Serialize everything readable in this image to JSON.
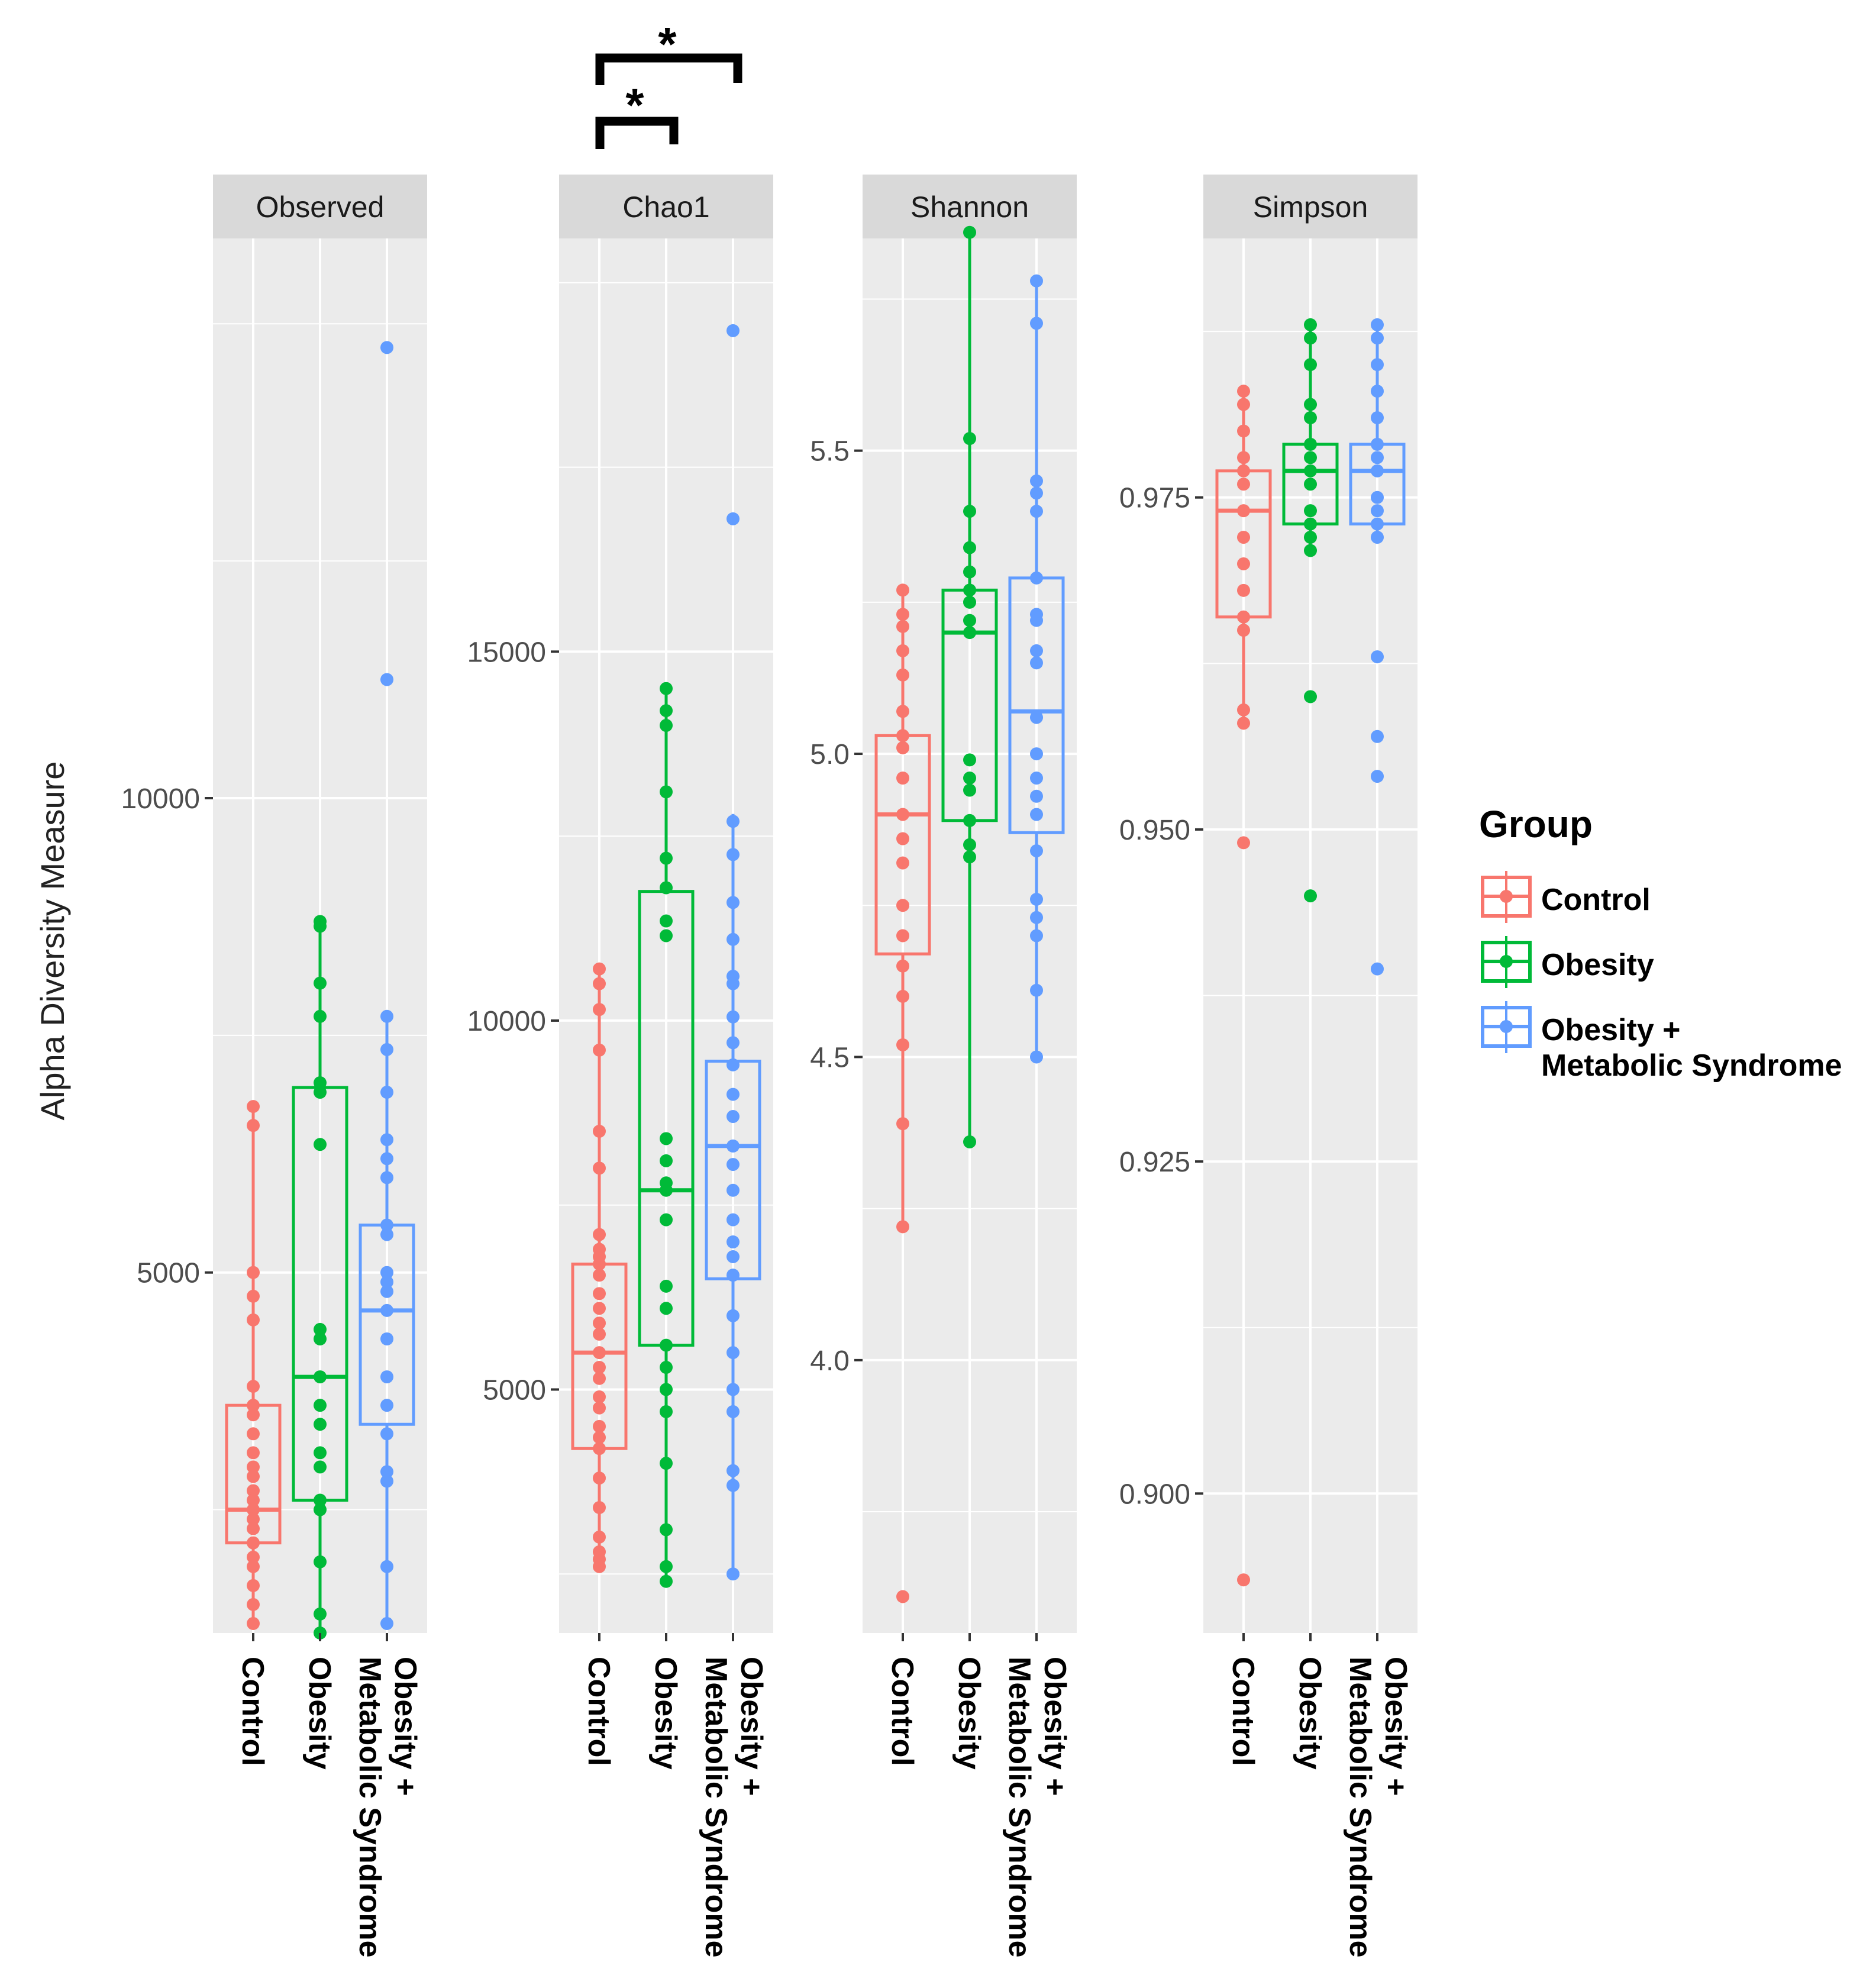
{
  "y_axis_title": "Alpha Diversity Measure",
  "legend": {
    "title": "Group",
    "entries": [
      {
        "label": "Control",
        "color": "#F8766D"
      },
      {
        "label": "Obesity",
        "color": "#00BA38"
      },
      {
        "label_line1": "Obesity +",
        "label_line2": "Metabolic Syndrome",
        "color": "#619CFF"
      }
    ]
  },
  "x_tick_labels": {
    "control": "Control",
    "obesity": "Obesity",
    "ms_line1": "Obesity +",
    "ms_line2": "Metabolic Syndrome"
  },
  "significance": [
    {
      "facet": "Chao1",
      "from": "Control",
      "to": "Obesity",
      "label": "*"
    },
    {
      "facet": "Chao1",
      "from": "Control",
      "to": "Obesity + Metabolic Syndrome",
      "label": "*"
    }
  ],
  "chart_data": [
    {
      "type": "box",
      "title": "Observed",
      "ylim": [
        1200,
        15900
      ],
      "yticks": [
        5000,
        10000
      ],
      "ytick_labels": [
        "5000",
        "10000"
      ],
      "categories": [
        "Control",
        "Obesity",
        "Obesity + Metabolic Syndrome"
      ],
      "groups": [
        {
          "name": "Control",
          "color": "#F8766D",
          "box": {
            "whisker_low": 1300,
            "q1": 2150,
            "median": 2500,
            "q3": 3600,
            "whisker_high": 6750
          },
          "points": [
            6750,
            6550,
            5000,
            4750,
            4500,
            3800,
            3600,
            3500,
            3300,
            3100,
            2950,
            2850,
            2700,
            2600,
            2500,
            2400,
            2300,
            2150,
            2000,
            1900,
            1700,
            1500,
            1300
          ]
        },
        {
          "name": "Obesity",
          "color": "#00BA38",
          "box": {
            "whisker_low": 1200,
            "q1": 2600,
            "median": 3900,
            "q3": 6950,
            "whisker_high": 8700
          },
          "points": [
            8700,
            8650,
            8050,
            7700,
            7000,
            6900,
            6350,
            4400,
            4300,
            3900,
            3600,
            3400,
            3100,
            2950,
            2600,
            2500,
            1950,
            1400,
            1200
          ]
        },
        {
          "name": "Obesity + Metabolic Syndrome",
          "color": "#619CFF",
          "box": {
            "whisker_low": 1300,
            "q1": 3400,
            "median": 4600,
            "q3": 5500,
            "whisker_high": 7700
          },
          "points": [
            14750,
            11250,
            7700,
            7350,
            6900,
            6400,
            6200,
            6000,
            5500,
            5400,
            5000,
            4900,
            4800,
            4600,
            4300,
            3900,
            3600,
            3300,
            2900,
            2800,
            1900,
            1300
          ]
        }
      ]
    },
    {
      "type": "box",
      "title": "Chao1",
      "ylim": [
        1700,
        20600
      ],
      "yticks": [
        5000,
        10000,
        15000
      ],
      "ytick_labels": [
        "5000",
        "10000",
        "15000"
      ],
      "categories": [
        "Control",
        "Obesity",
        "Obesity + Metabolic Syndrome"
      ],
      "groups": [
        {
          "name": "Control",
          "color": "#F8766D",
          "box": {
            "whisker_low": 2600,
            "q1": 4200,
            "median": 5500,
            "q3": 6700,
            "whisker_high": 10700
          },
          "points": [
            10700,
            10500,
            10150,
            9600,
            8500,
            8000,
            7100,
            6900,
            6800,
            6700,
            6550,
            6300,
            6100,
            5900,
            5750,
            5500,
            5300,
            5150,
            4900,
            4750,
            4500,
            4350,
            4200,
            3800,
            3400,
            3000,
            2800,
            2700,
            2600
          ]
        },
        {
          "name": "Obesity",
          "color": "#00BA38",
          "box": {
            "whisker_low": 2400,
            "q1": 5600,
            "median": 7700,
            "q3": 11750,
            "whisker_high": 14500
          },
          "points": [
            14500,
            14200,
            14000,
            13100,
            12200,
            11800,
            11350,
            11150,
            8400,
            8100,
            7800,
            7700,
            7300,
            6400,
            6100,
            5600,
            5300,
            5000,
            4700,
            4000,
            3100,
            2600,
            2400
          ]
        },
        {
          "name": "Obesity + Metabolic Syndrome",
          "color": "#619CFF",
          "box": {
            "whisker_low": 2500,
            "q1": 6500,
            "median": 8300,
            "q3": 9450,
            "whisker_high": 12800
          },
          "points": [
            19350,
            16800,
            12700,
            12250,
            11600,
            11100,
            10600,
            10500,
            10050,
            9700,
            9400,
            9000,
            8700,
            8300,
            8050,
            7700,
            7300,
            7000,
            6800,
            6550,
            6000,
            5500,
            5000,
            4700,
            3900,
            3700,
            2500
          ]
        }
      ]
    },
    {
      "type": "box",
      "title": "Shannon",
      "ylim": [
        3.55,
        5.85
      ],
      "yticks": [
        4.0,
        4.5,
        5.0,
        5.5
      ],
      "ytick_labels": [
        "4.0",
        "4.5",
        "5.0",
        "5.5"
      ],
      "categories": [
        "Control",
        "Obesity",
        "Obesity + Metabolic Syndrome"
      ],
      "groups": [
        {
          "name": "Control",
          "color": "#F8766D",
          "box": {
            "whisker_low": 4.22,
            "q1": 4.67,
            "median": 4.9,
            "q3": 5.03,
            "whisker_high": 5.27
          },
          "points": [
            5.27,
            5.23,
            5.21,
            5.17,
            5.13,
            5.07,
            5.03,
            5.01,
            4.96,
            4.9,
            4.86,
            4.82,
            4.75,
            4.7,
            4.65,
            4.6,
            4.52,
            4.39,
            4.22,
            3.61
          ]
        },
        {
          "name": "Obesity",
          "color": "#00BA38",
          "box": {
            "whisker_low": 4.36,
            "q1": 4.89,
            "median": 5.2,
            "q3": 5.27,
            "whisker_high": 5.86
          },
          "points": [
            5.86,
            5.52,
            5.4,
            5.34,
            5.3,
            5.27,
            5.25,
            5.22,
            5.2,
            4.99,
            4.96,
            4.94,
            4.89,
            4.85,
            4.83,
            4.36
          ]
        },
        {
          "name": "Obesity + Metabolic Syndrome",
          "color": "#619CFF",
          "box": {
            "whisker_low": 4.5,
            "q1": 4.87,
            "median": 5.07,
            "q3": 5.29,
            "whisker_high": 5.78
          },
          "points": [
            5.78,
            5.71,
            5.45,
            5.43,
            5.4,
            5.29,
            5.23,
            5.22,
            5.17,
            5.15,
            5.06,
            5.0,
            4.96,
            4.93,
            4.9,
            4.84,
            4.76,
            4.73,
            4.7,
            4.61,
            4.5
          ]
        }
      ]
    },
    {
      "type": "box",
      "title": "Simpson",
      "ylim": [
        0.8895,
        0.9945
      ],
      "yticks": [
        0.9,
        0.925,
        0.95,
        0.975
      ],
      "ytick_labels": [
        "0.900",
        "0.925",
        "0.950",
        "0.975"
      ],
      "categories": [
        "Control",
        "Obesity",
        "Obesity + Metabolic Syndrome"
      ],
      "groups": [
        {
          "name": "Control",
          "color": "#F8766D",
          "box": {
            "whisker_low": 0.958,
            "q1": 0.966,
            "median": 0.974,
            "q3": 0.977,
            "whisker_high": 0.983
          },
          "points": [
            0.983,
            0.982,
            0.98,
            0.978,
            0.977,
            0.976,
            0.974,
            0.972,
            0.97,
            0.968,
            0.966,
            0.965,
            0.959,
            0.958,
            0.949,
            0.8935
          ]
        },
        {
          "name": "Obesity",
          "color": "#00BA38",
          "box": {
            "whisker_low": 0.971,
            "q1": 0.973,
            "median": 0.977,
            "q3": 0.979,
            "whisker_high": 0.988
          },
          "points": [
            0.988,
            0.987,
            0.985,
            0.982,
            0.981,
            0.979,
            0.978,
            0.977,
            0.976,
            0.974,
            0.973,
            0.972,
            0.971,
            0.96,
            0.945
          ]
        },
        {
          "name": "Obesity + Metabolic Syndrome",
          "color": "#619CFF",
          "box": {
            "whisker_low": 0.972,
            "q1": 0.973,
            "median": 0.977,
            "q3": 0.979,
            "whisker_high": 0.988
          },
          "points": [
            0.988,
            0.987,
            0.985,
            0.983,
            0.981,
            0.979,
            0.978,
            0.977,
            0.975,
            0.974,
            0.973,
            0.972,
            0.963,
            0.957,
            0.954,
            0.9395
          ]
        }
      ]
    }
  ]
}
